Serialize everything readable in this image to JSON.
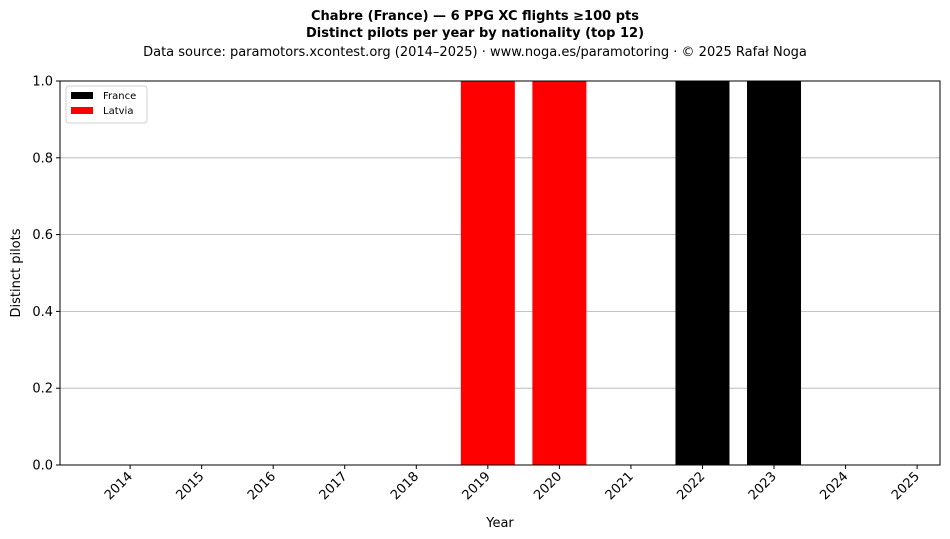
{
  "chart_data": {
    "type": "bar",
    "title_lines": [
      "Chabre (France)  —  6 PPG XC flights ≥100 pts",
      "Distinct pilots per year by nationality (top 12)"
    ],
    "subtitle": "Data source: paramotors.xcontest.org (2014–2025)  ·  www.noga.es/paramotoring  ·  © 2025 Rafał Noga",
    "xlabel": "Year",
    "ylabel": "Distinct pilots",
    "categories": [
      "2014",
      "2015",
      "2016",
      "2017",
      "2018",
      "2019",
      "2020",
      "2021",
      "2022",
      "2023",
      "2024",
      "2025"
    ],
    "ylim": [
      0,
      1
    ],
    "yticks": [
      "0.0",
      "0.2",
      "0.4",
      "0.6",
      "0.8",
      "1.0"
    ],
    "grid": "horizontal",
    "stacked": true,
    "legend_position": "top-left",
    "series": [
      {
        "name": "France",
        "color": "#000000",
        "values": [
          0,
          0,
          0,
          0,
          0,
          0,
          0,
          0,
          1,
          1,
          0,
          0
        ]
      },
      {
        "name": "Latvia",
        "color": "#ff0000",
        "values": [
          0,
          0,
          0,
          0,
          0,
          1,
          1,
          0,
          0,
          0,
          0,
          0
        ]
      }
    ]
  }
}
